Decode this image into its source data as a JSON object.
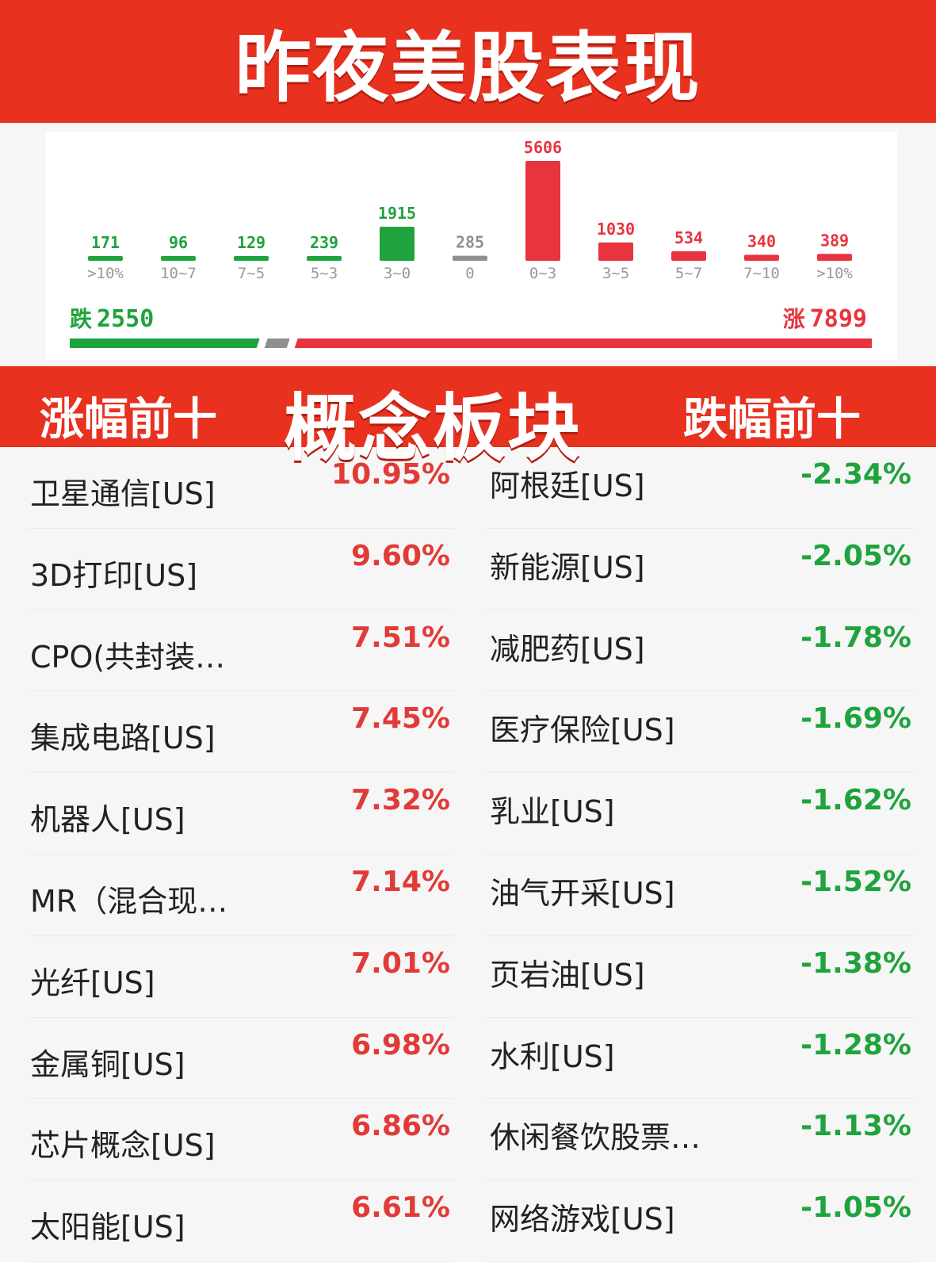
{
  "header": {
    "title": "昨夜美股表现"
  },
  "chart_data": {
    "type": "bar",
    "categories": [
      ">10%",
      "10~7",
      "7~5",
      "5~3",
      "3~0",
      "0",
      "0~3",
      "3~5",
      "5~7",
      "7~10",
      ">10%"
    ],
    "values": [
      171,
      96,
      129,
      239,
      1915,
      285,
      5606,
      1030,
      534,
      340,
      389
    ],
    "colors": [
      "#1fa33c",
      "#1fa33c",
      "#1fa33c",
      "#1fa33c",
      "#1fa33c",
      "#8f8f8f",
      "#e8343f",
      "#e8343f",
      "#e8343f",
      "#e8343f",
      "#e8343f"
    ],
    "title": "",
    "xlabel": "",
    "ylabel": "",
    "ylim": [
      0,
      5606
    ],
    "grid": false,
    "summary": {
      "down_label": "跌",
      "down_count": "2550",
      "up_label": "涨",
      "up_count": "7899",
      "down_color": "#1fa33c",
      "flat_color": "#8f8f8f",
      "up_color": "#e8343f"
    }
  },
  "section": {
    "left_label": "涨幅前十",
    "center_label": "概念板块",
    "right_label": "跌幅前十"
  },
  "gainers": [
    {
      "name": "卫星通信[US]",
      "pct": "10.95%"
    },
    {
      "name": "3D打印[US]",
      "pct": "9.60%"
    },
    {
      "name": "CPO(共封装…",
      "pct": "7.51%"
    },
    {
      "name": "集成电路[US]",
      "pct": "7.45%"
    },
    {
      "name": "机器人[US]",
      "pct": "7.32%"
    },
    {
      "name": "MR（混合现…",
      "pct": "7.14%"
    },
    {
      "name": "光纤[US]",
      "pct": "7.01%"
    },
    {
      "name": "金属铜[US]",
      "pct": "6.98%"
    },
    {
      "name": "芯片概念[US]",
      "pct": "6.86%"
    },
    {
      "name": "太阳能[US]",
      "pct": "6.61%"
    }
  ],
  "losers": [
    {
      "name": "阿根廷[US]",
      "pct": "-2.34%"
    },
    {
      "name": "新能源[US]",
      "pct": "-2.05%"
    },
    {
      "name": "减肥药[US]",
      "pct": "-1.78%"
    },
    {
      "name": "医疗保险[US]",
      "pct": "-1.69%"
    },
    {
      "name": "乳业[US]",
      "pct": "-1.62%"
    },
    {
      "name": "油气开采[US]",
      "pct": "-1.52%"
    },
    {
      "name": "页岩油[US]",
      "pct": "-1.38%"
    },
    {
      "name": "水利[US]",
      "pct": "-1.28%"
    },
    {
      "name": "休闲餐饮股票…",
      "pct": "-1.13%"
    },
    {
      "name": "网络游戏[US]",
      "pct": "-1.05%"
    }
  ]
}
